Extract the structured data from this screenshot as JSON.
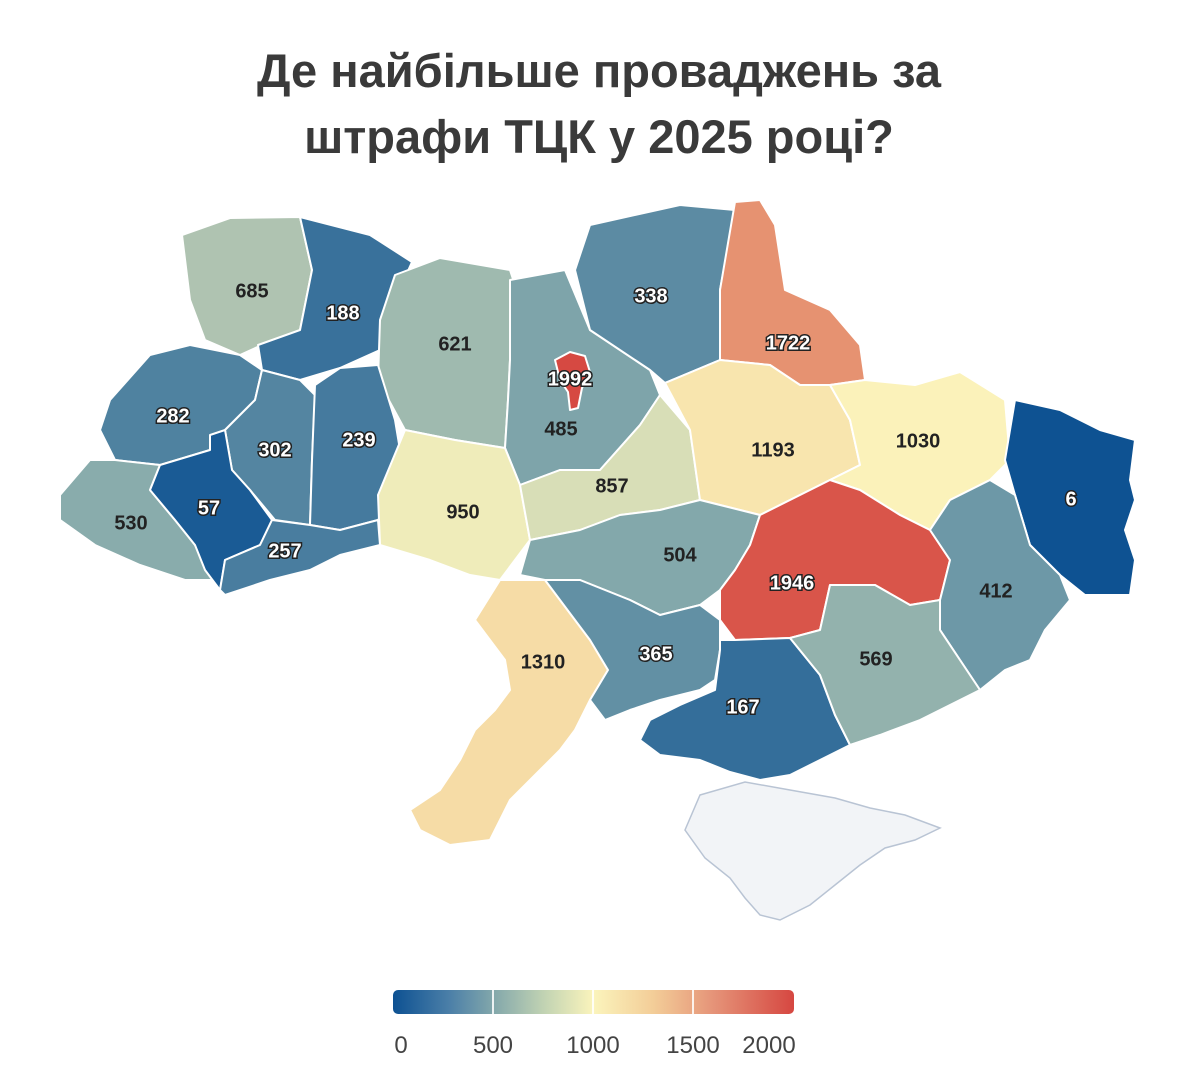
{
  "title_line1": "Де найбільше проваджень за",
  "title_line2": "штрафи ТЦК у 2025 році?",
  "legend": {
    "min": 0,
    "max": 2000,
    "ticks": [
      "0",
      "500",
      "1000",
      "1500",
      "2000"
    ],
    "colors": [
      "#0d5192",
      "#82a7ab",
      "#fbf4bc",
      "#f3cd98",
      "#d64741"
    ]
  },
  "regions": [
    {
      "id": "volyn",
      "value": 685
    },
    {
      "id": "rivne",
      "value": 188
    },
    {
      "id": "zhytomyr",
      "value": 621
    },
    {
      "id": "kyiv-oblast",
      "value": 485
    },
    {
      "id": "kyiv-city",
      "value": 1992
    },
    {
      "id": "chernihiv",
      "value": 338
    },
    {
      "id": "sumy",
      "value": 1722
    },
    {
      "id": "lviv",
      "value": 282
    },
    {
      "id": "ternopil",
      "value": 302
    },
    {
      "id": "khmelnytskyi",
      "value": 239
    },
    {
      "id": "vinnytsia",
      "value": 950
    },
    {
      "id": "cherkasy",
      "value": 857
    },
    {
      "id": "poltava",
      "value": 1193
    },
    {
      "id": "kharkiv",
      "value": 1030
    },
    {
      "id": "luhansk",
      "value": 6
    },
    {
      "id": "zakarpattia",
      "value": 530
    },
    {
      "id": "ivano-frankivsk",
      "value": 57
    },
    {
      "id": "chernivtsi",
      "value": 257
    },
    {
      "id": "kirovohrad",
      "value": 504
    },
    {
      "id": "dnipropetrovsk",
      "value": 1946
    },
    {
      "id": "donetsk",
      "value": 412
    },
    {
      "id": "odesa",
      "value": 1310
    },
    {
      "id": "mykolaiv",
      "value": 365
    },
    {
      "id": "kherson",
      "value": 167
    },
    {
      "id": "zaporizhzhia",
      "value": 569
    }
  ]
}
